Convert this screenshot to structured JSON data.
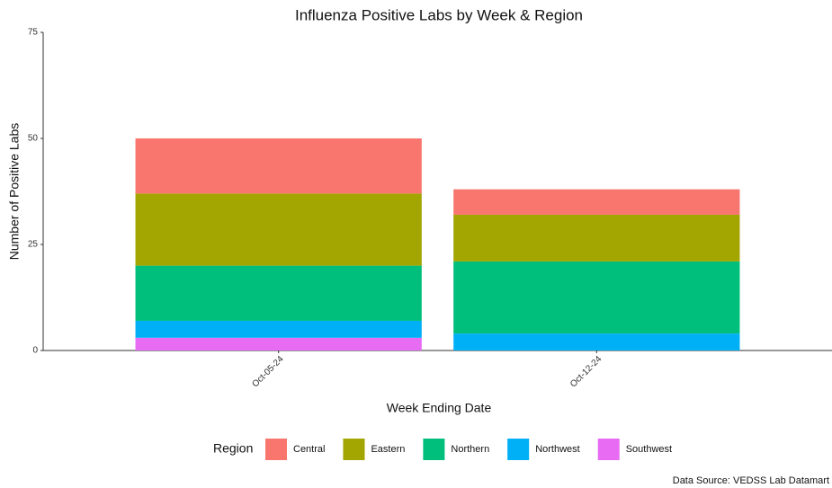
{
  "chart_data": {
    "type": "stacked_bar",
    "title": "Influenza Positive Labs by Week & Region",
    "x_label": "Week Ending Date",
    "y_label": "Number of Positive Labs",
    "categories": [
      "Oct-05-24",
      "Oct-12-24"
    ],
    "series": [
      {
        "name": "Southwest",
        "color": "#E76BF3",
        "values": [
          3,
          0
        ]
      },
      {
        "name": "Northwest",
        "color": "#00B0F6",
        "values": [
          4,
          4
        ]
      },
      {
        "name": "Northern",
        "color": "#00BF7D",
        "values": [
          13,
          17
        ]
      },
      {
        "name": "Eastern",
        "color": "#A3A500",
        "values": [
          17,
          11
        ]
      },
      {
        "name": "Central",
        "color": "#F8766D",
        "values": [
          13,
          6
        ]
      }
    ],
    "legend_title": "Region",
    "legend_position": "bottom",
    "caption": "Data Source: VEDSS Lab Datamart",
    "ylim": [
      0,
      75
    ],
    "yticks": [
      0,
      25,
      50,
      75
    ],
    "grid": false
  }
}
